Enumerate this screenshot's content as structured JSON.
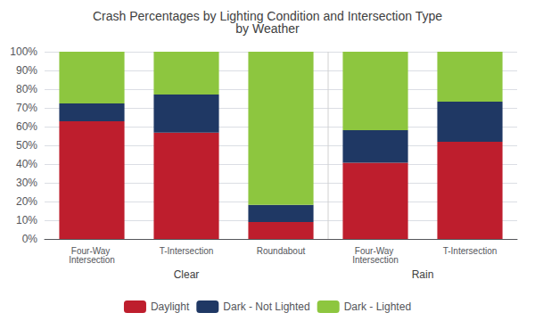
{
  "chart_data": {
    "type": "bar",
    "title": "Crash Percentages by Lighting Condition and Intersection Type\nby Weather",
    "categories": [
      "Four-Way Intersection",
      "T-Intersection",
      "Roundabout",
      "Four-Way Intersection",
      "T-Intersection"
    ],
    "groups": [
      "Clear",
      "Clear",
      "Clear",
      "Rain",
      "Rain"
    ],
    "series": [
      {
        "name": "Daylight",
        "color": "#BE1E2D",
        "values": [
          62.8,
          56.8,
          9.1,
          40.7,
          51.9
        ]
      },
      {
        "name": "Dark - Not Lighted",
        "color": "#1F3864",
        "values": [
          9.6,
          20.3,
          9.1,
          17.4,
          21.4
        ]
      },
      {
        "name": "Dark - Lighted",
        "color": "#8DC63F",
        "values": [
          27.6,
          22.9,
          81.8,
          41.9,
          26.7
        ]
      }
    ],
    "stacked": true,
    "ylim": [
      0,
      100
    ],
    "yticks": [
      {
        "value": 0,
        "label": "0%"
      },
      {
        "value": 10,
        "label": "10%"
      },
      {
        "value": 20,
        "label": "20%"
      },
      {
        "value": 30,
        "label": "30%"
      },
      {
        "value": 40,
        "label": "40%"
      },
      {
        "value": 50,
        "label": "50%"
      },
      {
        "value": 60,
        "label": "60%"
      },
      {
        "value": 70,
        "label": "70%"
      },
      {
        "value": 80,
        "label": "80%"
      },
      {
        "value": 90,
        "label": "90%"
      },
      {
        "value": 100,
        "label": "100%"
      }
    ],
    "grid": true,
    "legend": "bottom"
  }
}
